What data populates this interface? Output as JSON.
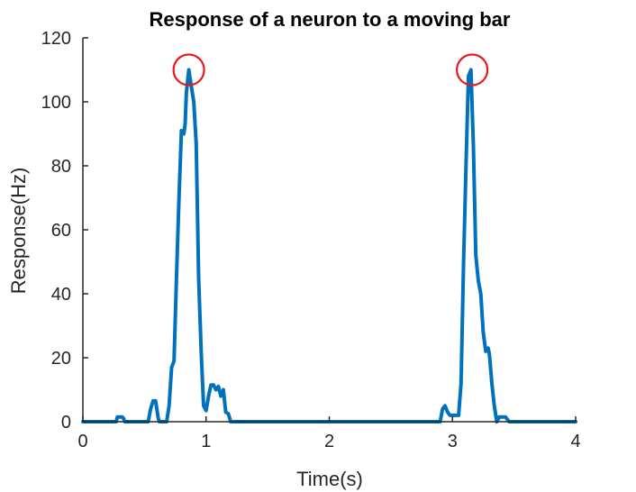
{
  "chart_data": {
    "type": "line",
    "title": "Response of a neuron to a moving bar",
    "xlabel": "Time(s)",
    "ylabel": "Response(Hz)",
    "xlim": [
      0,
      4
    ],
    "ylim": [
      0,
      120
    ],
    "xticks": [
      0,
      1,
      2,
      3,
      4
    ],
    "xtick_labels": [
      "0",
      "1",
      "2",
      "3",
      "4"
    ],
    "yticks": [
      0,
      20,
      40,
      60,
      80,
      100,
      120
    ],
    "ytick_labels": [
      "0",
      "20",
      "40",
      "60",
      "80",
      "100",
      "120"
    ],
    "grid": false,
    "series": [
      {
        "color": "#0072BD",
        "x": [
          0,
          0.27,
          0.28,
          0.3,
          0.32,
          0.33,
          0.34,
          0.53,
          0.55,
          0.57,
          0.59,
          0.6,
          0.61,
          0.62,
          0.68,
          0.7,
          0.72,
          0.74,
          0.76,
          0.78,
          0.8,
          0.82,
          0.83,
          0.84,
          0.86,
          0.88,
          0.9,
          0.92,
          0.94,
          0.96,
          0.98,
          1.0,
          1.02,
          1.04,
          1.06,
          1.08,
          1.1,
          1.12,
          1.14,
          1.16,
          1.18,
          1.2,
          1.21,
          2.9,
          2.92,
          2.94,
          2.96,
          2.98,
          3.0,
          3.05,
          3.07,
          3.09,
          3.11,
          3.13,
          3.15,
          3.17,
          3.19,
          3.21,
          3.23,
          3.25,
          3.27,
          3.29,
          3.3,
          3.32,
          3.34,
          3.36,
          3.38,
          3.4,
          3.41,
          3.43,
          3.45,
          3.46,
          4.0
        ],
        "y": [
          0,
          0,
          1.5,
          1.5,
          1.5,
          1.0,
          0,
          0,
          4,
          6.5,
          6.5,
          4,
          1.5,
          0,
          0,
          5,
          17,
          19,
          45,
          70,
          91,
          90,
          93,
          103,
          110,
          105,
          100,
          87,
          45,
          22,
          5,
          3.5,
          8,
          11.5,
          11.5,
          10,
          11,
          8,
          10,
          3,
          2.5,
          0,
          0,
          0,
          4,
          5,
          3,
          2,
          2,
          2,
          12,
          50,
          80,
          108,
          110,
          86,
          52,
          44,
          40,
          28,
          22,
          23,
          21,
          12,
          5,
          0,
          1.5,
          1.5,
          1.5,
          1.5,
          0.5,
          0,
          0
        ]
      }
    ],
    "annotations": [
      {
        "type": "circle",
        "x": 0.86,
        "y": 110,
        "color": "#e8181b"
      },
      {
        "type": "circle",
        "x": 3.16,
        "y": 110,
        "color": "#e8181b"
      }
    ]
  }
}
